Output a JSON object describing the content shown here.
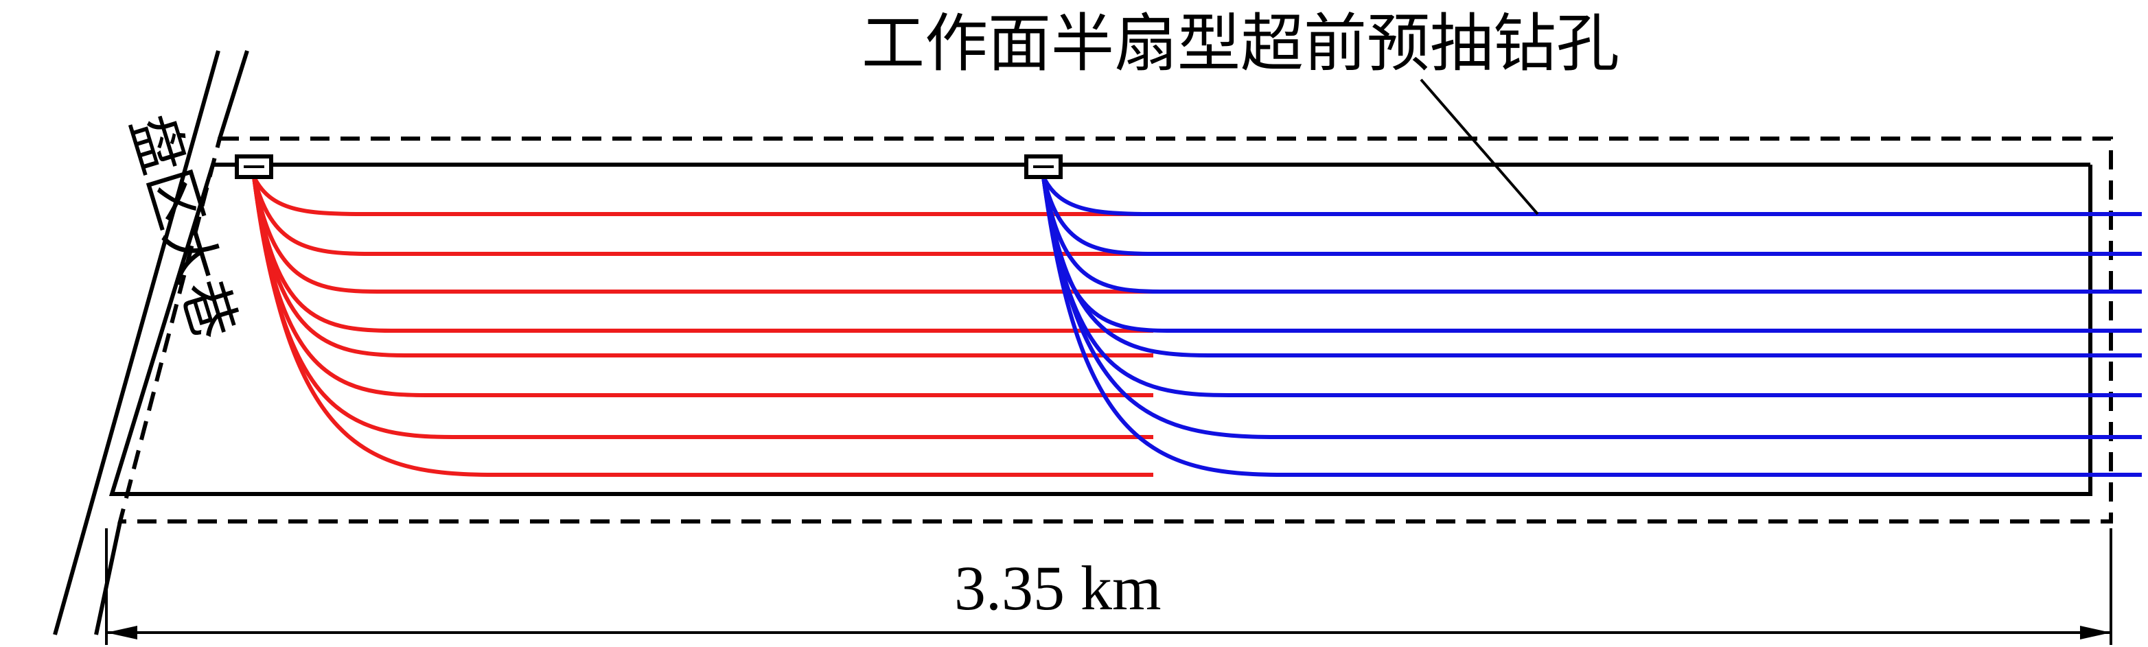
{
  "labels": {
    "title": "工作面半扇型超前预抽钻孔",
    "roadway": "盘区大巷",
    "dimension": "3.35 km"
  },
  "colors": {
    "left_fan": "#ee1c1c",
    "right_fan": "#1010e0",
    "outline": "#000000"
  },
  "fans": {
    "left_borehole_count": 8,
    "right_borehole_count": 8
  }
}
